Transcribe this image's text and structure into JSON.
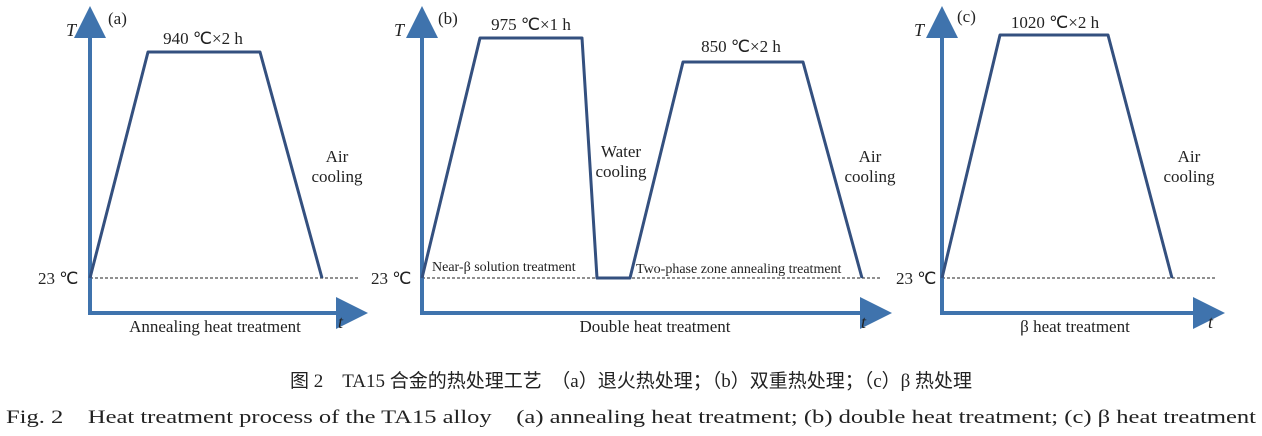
{
  "colors": {
    "axis": "#3f73ad",
    "curve": "#34507f"
  },
  "panels": [
    {
      "tag": "(a)",
      "y_axis": "T",
      "x_axis": "t",
      "base_temp": "23 ℃",
      "hold": "940 ℃×2 h",
      "cooling": [
        "Air",
        "cooling"
      ],
      "title": "Annealing heat treatment"
    },
    {
      "tag": "(b)",
      "y_axis": "T",
      "x_axis": "t",
      "base_temp": "23 ℃",
      "hold1": "975 ℃×1 h",
      "hold2": "850 ℃×2 h",
      "cooling1": [
        "Water",
        "cooling"
      ],
      "cooling2": [
        "Air",
        "cooling"
      ],
      "stage1": "Near-β solution treatment",
      "stage2": "Two-phase zone annealing treatment",
      "title": "Double heat treatment"
    },
    {
      "tag": "(c)",
      "y_axis": "T",
      "x_axis": "t",
      "base_temp": "23 ℃",
      "hold": "1020 ℃×2 h",
      "cooling": [
        "Air",
        "cooling"
      ],
      "title": "β heat treatment"
    }
  ],
  "caption_cn": "图 2　TA15 合金的热处理工艺　（a）退火热处理；（b）双重热处理；（c）β 热处理",
  "caption_en": "Fig. 2　Heat treatment process of the TA15 alloy　(a) annealing heat treatment; (b) double heat treatment; (c) β heat treatment"
}
